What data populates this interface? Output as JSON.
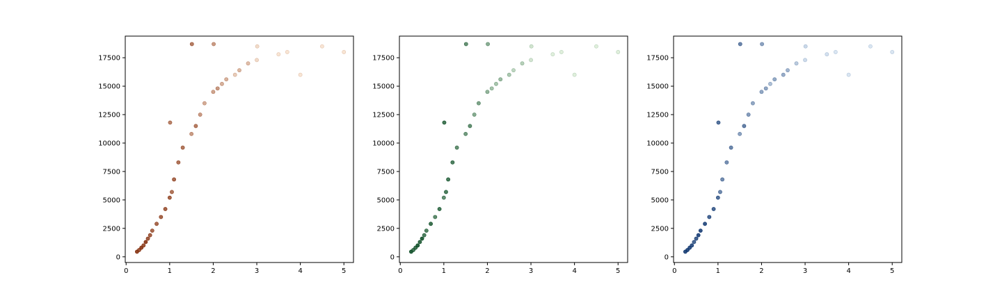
{
  "chart_data": [
    {
      "type": "scatter",
      "title": "",
      "xlabel": "",
      "ylabel": "",
      "xlim": [
        -0.02,
        5.22
      ],
      "ylim": [
        -500,
        19400
      ],
      "xticks": [
        "0",
        "1",
        "2",
        "3",
        "4",
        "5"
      ],
      "yticks": [
        "0",
        "2500",
        "5000",
        "7500",
        "10000",
        "12500",
        "15000",
        "17500"
      ],
      "grid": false,
      "legend": "none",
      "colormap": "Oranges",
      "cmap_light": "#fdebd8",
      "cmap_dark": "#7f2704",
      "series": [
        {
          "x": [
            0.25,
            0.3,
            0.35,
            0.4,
            0.45,
            0.5,
            0.55,
            0.6,
            0.7,
            0.8,
            0.9,
            1.0,
            1.01,
            1.05,
            1.1,
            1.2,
            1.3,
            1.5,
            1.51,
            1.6,
            1.7,
            1.8,
            2.0,
            2.01,
            2.1,
            2.2,
            2.3,
            2.5,
            2.6,
            2.8,
            3.0,
            3.01,
            3.5,
            3.7,
            4.0,
            4.5,
            5.0
          ],
          "y": [
            450,
            600,
            800,
            1000,
            1300,
            1600,
            1900,
            2300,
            2900,
            3500,
            4200,
            5200,
            11800,
            5700,
            6800,
            8300,
            9600,
            10800,
            18700,
            11500,
            12500,
            13500,
            14500,
            18700,
            14800,
            15200,
            15600,
            16000,
            16400,
            17000,
            17300,
            18500,
            17800,
            18000,
            16000,
            18500,
            18000
          ]
        }
      ]
    },
    {
      "type": "scatter",
      "title": "",
      "xlabel": "",
      "ylabel": "",
      "xlim": [
        -0.02,
        5.22
      ],
      "ylim": [
        -500,
        19400
      ],
      "xticks": [
        "0",
        "1",
        "2",
        "3",
        "4",
        "5"
      ],
      "yticks": [
        "0",
        "2500",
        "5000",
        "7500",
        "10000",
        "12500",
        "15000",
        "17500"
      ],
      "grid": false,
      "legend": "none",
      "colormap": "Greens",
      "cmap_light": "#e5f5e0",
      "cmap_dark": "#00441b",
      "series": [
        {
          "x": [
            0.25,
            0.3,
            0.35,
            0.4,
            0.45,
            0.5,
            0.55,
            0.6,
            0.7,
            0.8,
            0.9,
            1.0,
            1.01,
            1.05,
            1.1,
            1.2,
            1.3,
            1.5,
            1.51,
            1.6,
            1.7,
            1.8,
            2.0,
            2.01,
            2.1,
            2.2,
            2.3,
            2.5,
            2.6,
            2.8,
            3.0,
            3.01,
            3.5,
            3.7,
            4.0,
            4.5,
            5.0
          ],
          "y": [
            450,
            600,
            800,
            1000,
            1300,
            1600,
            1900,
            2300,
            2900,
            3500,
            4200,
            5200,
            11800,
            5700,
            6800,
            8300,
            9600,
            10800,
            18700,
            11500,
            12500,
            13500,
            14500,
            18700,
            14800,
            15200,
            15600,
            16000,
            16400,
            17000,
            17300,
            18500,
            17800,
            18000,
            16000,
            18500,
            18000
          ]
        }
      ]
    },
    {
      "type": "scatter",
      "title": "",
      "xlabel": "",
      "ylabel": "",
      "xlim": [
        -0.02,
        5.22
      ],
      "ylim": [
        -500,
        19400
      ],
      "xticks": [
        "0",
        "1",
        "2",
        "3",
        "4",
        "5"
      ],
      "yticks": [
        "0",
        "2500",
        "5000",
        "7500",
        "10000",
        "12500",
        "15000",
        "17500"
      ],
      "grid": false,
      "legend": "none",
      "colormap": "Blues",
      "cmap_light": "#deebf7",
      "cmap_dark": "#08306b",
      "series": [
        {
          "x": [
            0.25,
            0.3,
            0.35,
            0.4,
            0.45,
            0.5,
            0.55,
            0.6,
            0.7,
            0.8,
            0.9,
            1.0,
            1.01,
            1.05,
            1.1,
            1.2,
            1.3,
            1.5,
            1.51,
            1.6,
            1.7,
            1.8,
            2.0,
            2.01,
            2.1,
            2.2,
            2.3,
            2.5,
            2.6,
            2.8,
            3.0,
            3.01,
            3.5,
            3.7,
            4.0,
            4.5,
            5.0
          ],
          "y": [
            450,
            600,
            800,
            1000,
            1300,
            1600,
            1900,
            2300,
            2900,
            3500,
            4200,
            5200,
            11800,
            5700,
            6800,
            8300,
            9600,
            10800,
            18700,
            11500,
            12500,
            13500,
            14500,
            18700,
            14800,
            15200,
            15600,
            16000,
            16400,
            17000,
            17300,
            18500,
            17800,
            18000,
            16000,
            18500,
            18000
          ]
        }
      ]
    }
  ]
}
